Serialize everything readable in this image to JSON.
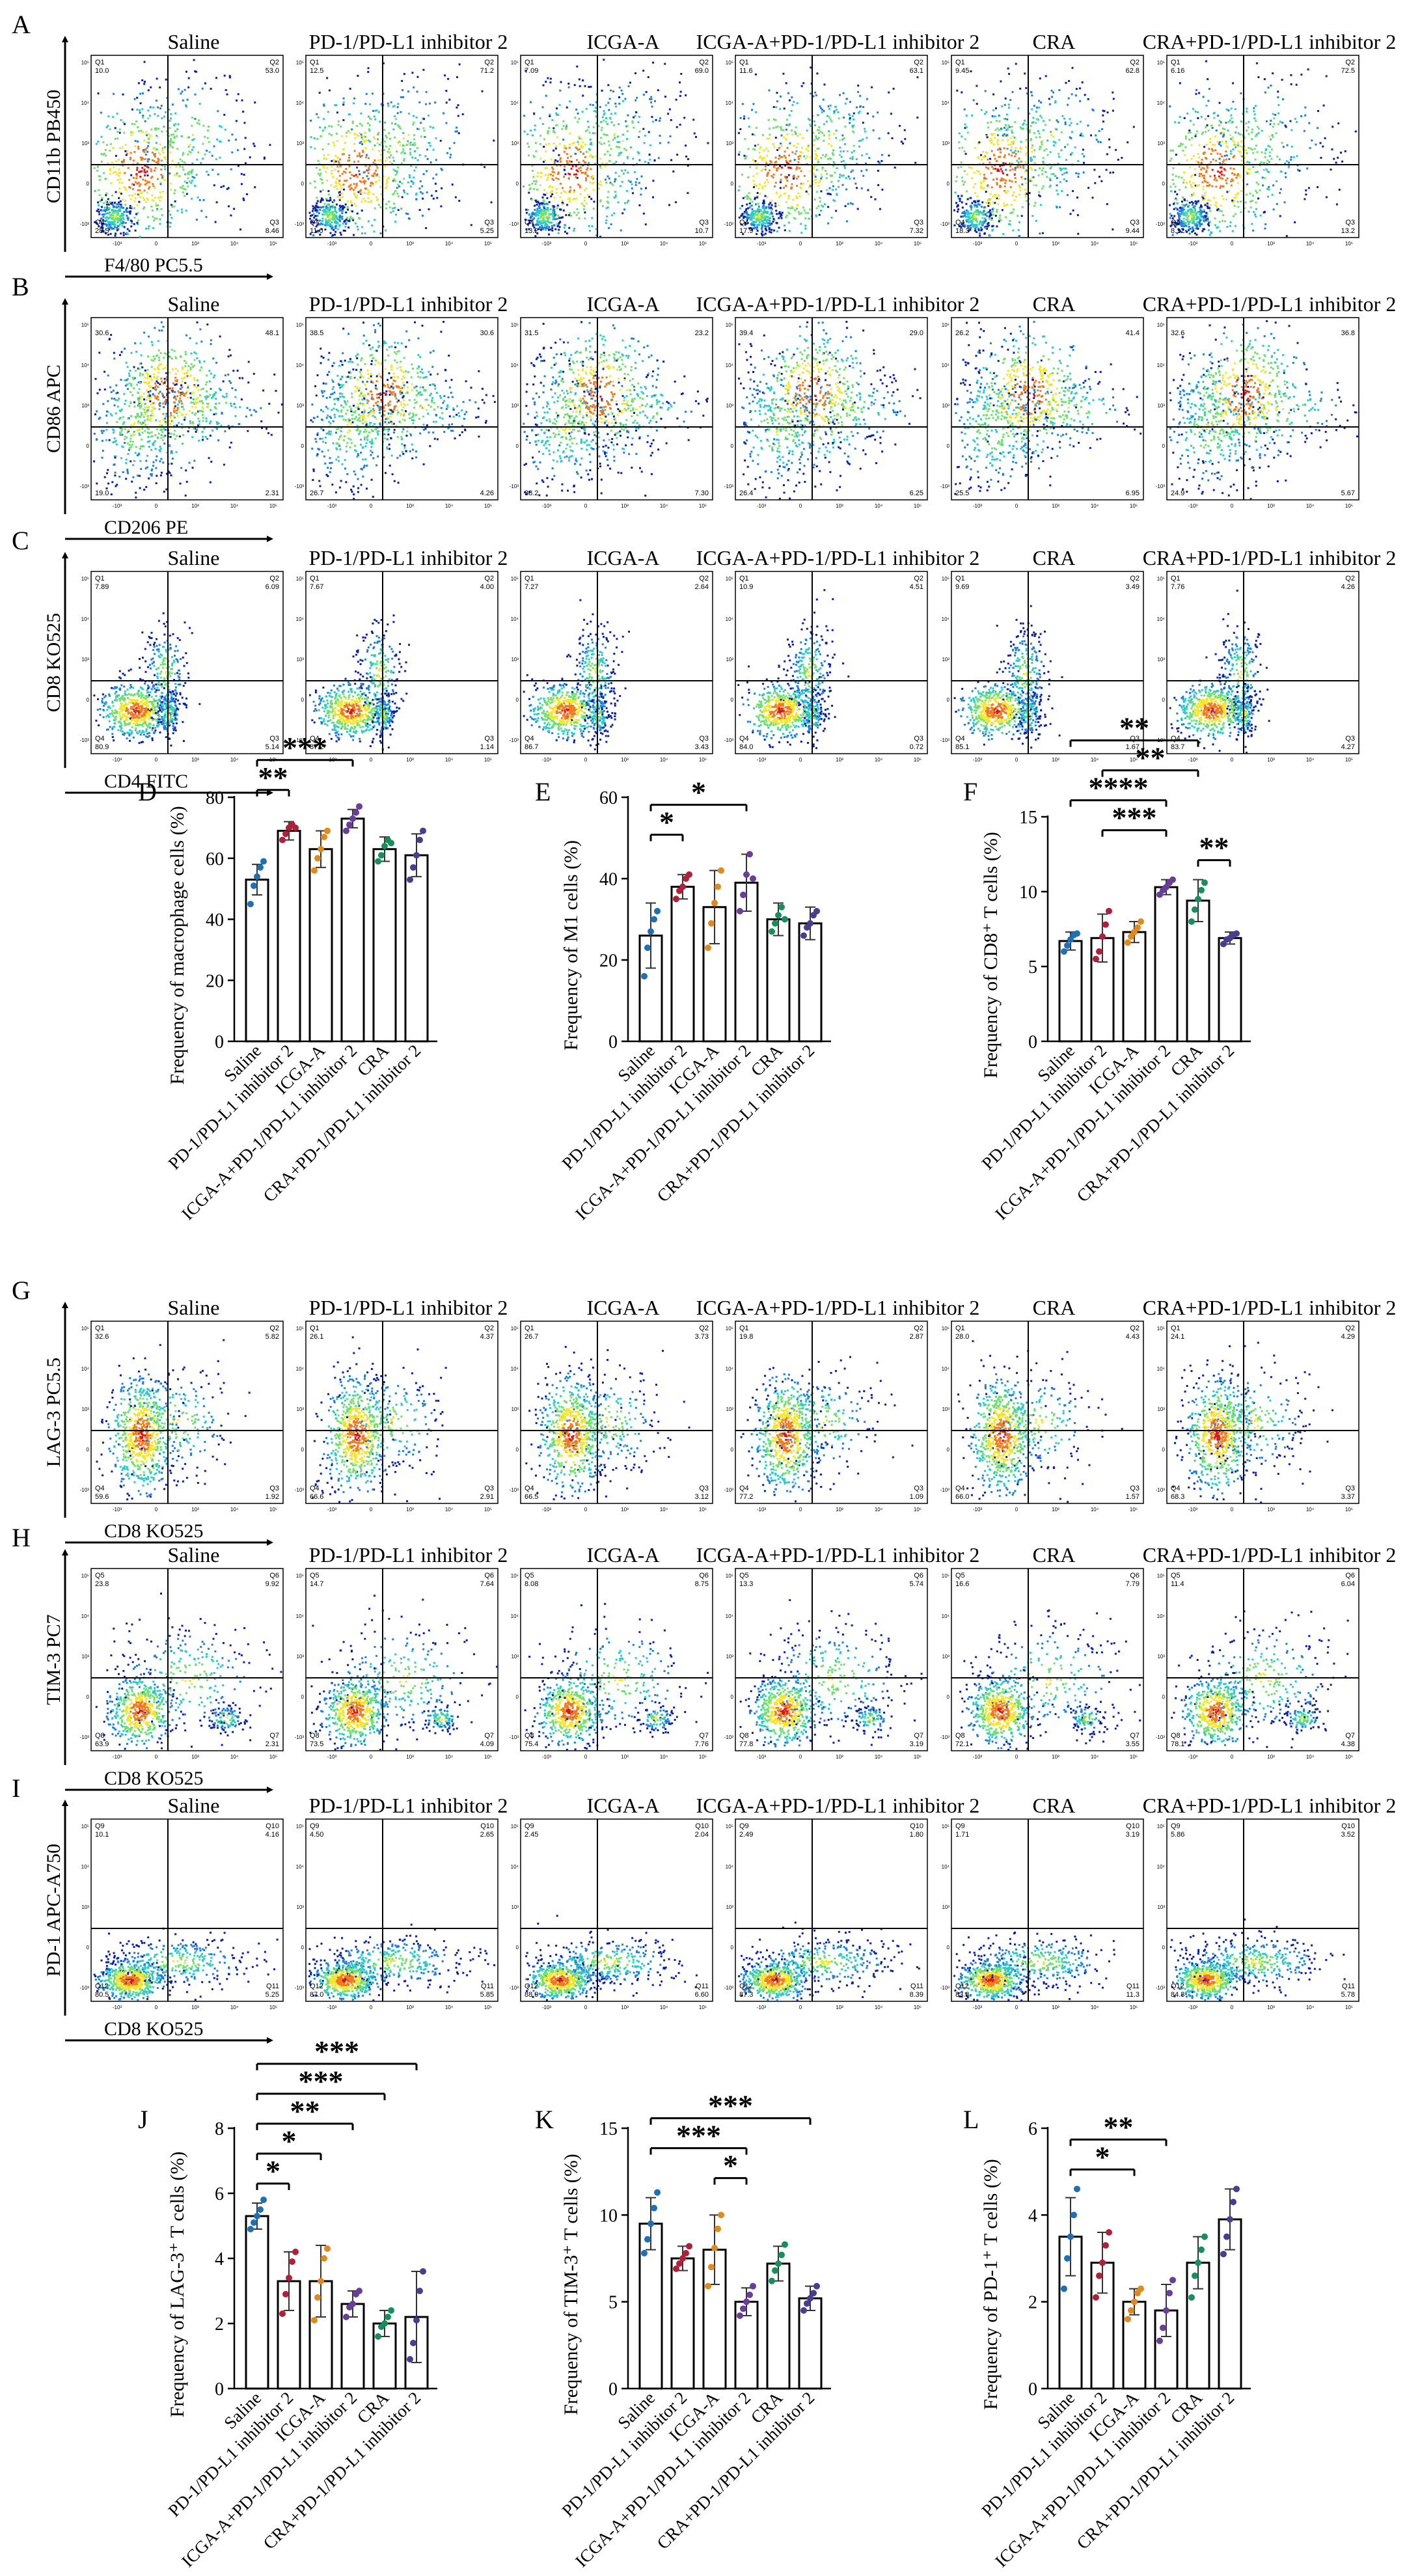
{
  "flow_rows": [
    {
      "label": "A",
      "y_axis": "CD11b PB450",
      "x_axis": "F4/80 PC5.5",
      "quadrants": [
        "Q1",
        "Q2",
        "Q3",
        "Q4"
      ],
      "panels": [
        {
          "title": "Saline",
          "q": [
            "10.0",
            "53.0",
            "8.46",
            "28.5"
          ]
        },
        {
          "title": "PD-1/PD-L1 inhibitor 2",
          "q": [
            "12.5",
            "71.2",
            "5.25",
            "11.0"
          ]
        },
        {
          "title": "ICGA-A",
          "q": [
            "7.09",
            "69.0",
            "10.7",
            "13.2"
          ]
        },
        {
          "title": "ICGA-A+PD-1/PD-L1 inhibitor 2",
          "q": [
            "11.6",
            "63.1",
            "7.32",
            "17.9"
          ]
        },
        {
          "title": "CRA",
          "q": [
            "9.45",
            "62.8",
            "9.44",
            "18.3"
          ]
        },
        {
          "title": "CRA+PD-1/PD-L1 inhibitor 2",
          "q": [
            "6.16",
            "72.5",
            "13.2",
            "8.12"
          ]
        }
      ]
    },
    {
      "label": "B",
      "y_axis": "CD86 APC",
      "x_axis": "CD206 PE",
      "quadrants": [
        "",
        "",
        "",
        ""
      ],
      "panels": [
        {
          "title": "Saline",
          "q": [
            "30.6",
            "48.1",
            "2.31",
            "19.0"
          ]
        },
        {
          "title": "PD-1/PD-L1 inhibitor 2",
          "q": [
            "38.5",
            "30.6",
            "4.26",
            "26.7"
          ]
        },
        {
          "title": "ICGA-A",
          "q": [
            "31.5",
            "23.2",
            "7.30",
            "38.2"
          ]
        },
        {
          "title": "ICGA-A+PD-1/PD-L1 inhibitor 2",
          "q": [
            "39.4",
            "29.0",
            "6.25",
            "26.4"
          ]
        },
        {
          "title": "CRA",
          "q": [
            "26.2",
            "41.4",
            "6.95",
            "25.5"
          ]
        },
        {
          "title": "CRA+PD-1/PD-L1 inhibitor 2",
          "q": [
            "32.6",
            "36.8",
            "5.67",
            "24.9"
          ]
        }
      ]
    },
    {
      "label": "C",
      "y_axis": "CD8 KO525",
      "x_axis": "CD4 FITC",
      "quadrants": [
        "Q1",
        "Q2",
        "Q3",
        "Q4"
      ],
      "panels": [
        {
          "title": "Saline",
          "q": [
            "7.89",
            "6.09",
            "5.14",
            "80.9"
          ]
        },
        {
          "title": "PD-1/PD-L1 inhibitor 2",
          "q": [
            "7.67",
            "4.00",
            "1.14",
            "87.2"
          ]
        },
        {
          "title": "ICGA-A",
          "q": [
            "7.27",
            "2.64",
            "3.43",
            "86.7"
          ]
        },
        {
          "title": "ICGA-A+PD-1/PD-L1 inhibitor 2",
          "q": [
            "10.9",
            "4.51",
            "0.72",
            "84.0"
          ]
        },
        {
          "title": "CRA",
          "q": [
            "9.69",
            "3.49",
            "1.67",
            "85.1"
          ]
        },
        {
          "title": "CRA+PD-1/PD-L1 inhibitor 2",
          "q": [
            "7.76",
            "4.26",
            "4.27",
            "83.7"
          ]
        }
      ]
    },
    {
      "label": "G",
      "y_axis": "LAG-3 PC5.5",
      "x_axis": "CD8 KO525",
      "quadrants": [
        "Q1",
        "Q2",
        "Q3",
        "Q4"
      ],
      "panels": [
        {
          "title": "Saline",
          "q": [
            "32.6",
            "5.82",
            "1.92",
            "59.6"
          ]
        },
        {
          "title": "PD-1/PD-L1 inhibitor 2",
          "q": [
            "26.1",
            "4.37",
            "2.91",
            "66.6"
          ]
        },
        {
          "title": "ICGA-A",
          "q": [
            "26.7",
            "3.73",
            "3.12",
            "66.5"
          ]
        },
        {
          "title": "ICGA-A+PD-1/PD-L1 inhibitor 2",
          "q": [
            "19.8",
            "2.87",
            "1.09",
            "77.2"
          ]
        },
        {
          "title": "CRA",
          "q": [
            "28.0",
            "4.43",
            "1.57",
            "66.0"
          ]
        },
        {
          "title": "CRA+PD-1/PD-L1 inhibitor 2",
          "q": [
            "24.1",
            "4.29",
            "3.37",
            "68.3"
          ]
        }
      ]
    },
    {
      "label": "H",
      "y_axis": "TIM-3 PC7",
      "x_axis": "CD8 KO525",
      "quadrants": [
        "Q5",
        "Q6",
        "Q7",
        "Q8"
      ],
      "panels": [
        {
          "title": "Saline",
          "q": [
            "23.8",
            "9.92",
            "2.31",
            "63.9"
          ]
        },
        {
          "title": "PD-1/PD-L1 inhibitor 2",
          "q": [
            "14.7",
            "7.64",
            "4.09",
            "73.5"
          ]
        },
        {
          "title": "ICGA-A",
          "q": [
            "8.08",
            "8.75",
            "7.76",
            "75.4"
          ]
        },
        {
          "title": "ICGA-A+PD-1/PD-L1 inhibitor 2",
          "q": [
            "13.3",
            "5.74",
            "3.19",
            "77.8"
          ]
        },
        {
          "title": "CRA",
          "q": [
            "16.6",
            "7.79",
            "3.55",
            "72.1"
          ]
        },
        {
          "title": "CRA+PD-1/PD-L1 inhibitor 2",
          "q": [
            "11.4",
            "6.04",
            "4.38",
            "78.1"
          ]
        }
      ]
    },
    {
      "label": "I",
      "y_axis": "PD-1 APC-A750",
      "x_axis": "CD8 KO525",
      "quadrants": [
        "Q9",
        "Q10",
        "Q11",
        "Q12"
      ],
      "panels": [
        {
          "title": "Saline",
          "q": [
            "10.1",
            "4.16",
            "5.25",
            "80.5"
          ]
        },
        {
          "title": "PD-1/PD-L1 inhibitor 2",
          "q": [
            "4.50",
            "2.65",
            "5.85",
            "87.0"
          ]
        },
        {
          "title": "ICGA-A",
          "q": [
            "2.45",
            "2.04",
            "6.60",
            "88.9"
          ]
        },
        {
          "title": "ICGA-A+PD-1/PD-L1 inhibitor 2",
          "q": [
            "2.49",
            "1.80",
            "8.39",
            "87.3"
          ]
        },
        {
          "title": "CRA",
          "q": [
            "1.71",
            "3.19",
            "11.3",
            "83.8"
          ]
        },
        {
          "title": "CRA+PD-1/PD-L1 inhibitor 2",
          "q": [
            "5.86",
            "3.52",
            "5.78",
            "84.8"
          ]
        }
      ]
    }
  ],
  "flow_ticks": {
    "x": [
      "-10³",
      "0",
      "10³",
      "10⁴",
      "10⁵"
    ],
    "y": [
      "10⁵",
      "10⁴",
      "10³",
      "0",
      "-10³"
    ]
  },
  "chart_data": [
    {
      "label": "D",
      "type": "bar",
      "ylabel": "Frequency of macrophage cells (%)",
      "ylim": [
        0,
        80
      ],
      "yticks": [
        "0",
        "20",
        "40",
        "60",
        "80"
      ],
      "categories": [
        "Saline",
        "PD-1/PD-L1 inhibitor 2",
        "ICGA-A",
        "ICGA-A+PD-1/PD-L1 inhibitor 2",
        "CRA",
        "CRA+PD-1/PD-L1 inhibitor 2"
      ],
      "values": [
        53,
        69,
        63,
        73,
        63,
        61
      ],
      "errors": [
        5,
        3,
        6,
        3,
        4,
        7
      ],
      "points": [
        [
          45,
          51,
          54,
          57,
          59
        ],
        [
          66,
          68,
          70,
          71,
          70
        ],
        [
          56,
          60,
          63,
          67,
          69
        ],
        [
          69,
          71,
          73,
          75,
          77
        ],
        [
          59,
          61,
          64,
          66,
          65
        ],
        [
          53,
          57,
          61,
          66,
          69
        ]
      ],
      "significance": [
        {
          "from": 0,
          "to": 1,
          "label": "**"
        },
        {
          "from": 0,
          "to": 3,
          "label": "***"
        }
      ]
    },
    {
      "label": "E",
      "type": "bar",
      "ylabel": "Frequency of M1 cells (%)",
      "ylim": [
        0,
        60
      ],
      "yticks": [
        "0",
        "20",
        "40",
        "60"
      ],
      "categories": [
        "Saline",
        "PD-1/PD-L1 inhibitor 2",
        "ICGA-A",
        "ICGA-A+PD-1/PD-L1 inhibitor 2",
        "CRA",
        "CRA+PD-1/PD-L1 inhibitor 2"
      ],
      "values": [
        26,
        38,
        33,
        39,
        30,
        29
      ],
      "errors": [
        8,
        3,
        9,
        7,
        4,
        4
      ],
      "points": [
        [
          16,
          23,
          27,
          30,
          32
        ],
        [
          35,
          37,
          38,
          40,
          41
        ],
        [
          23,
          29,
          34,
          38,
          42
        ],
        [
          32,
          36,
          41,
          46,
          40
        ],
        [
          27,
          29,
          31,
          33,
          30
        ],
        [
          26,
          28,
          29,
          31,
          32
        ]
      ],
      "significance": [
        {
          "from": 0,
          "to": 1,
          "label": "*"
        },
        {
          "from": 0,
          "to": 3,
          "label": "*"
        }
      ]
    },
    {
      "label": "F",
      "type": "bar",
      "ylabel": "Frequency of CD8⁺ T cells (%)",
      "ylim": [
        0,
        15
      ],
      "yticks": [
        "0",
        "5",
        "10",
        "15"
      ],
      "categories": [
        "Saline",
        "PD-1/PD-L1 inhibitor 2",
        "ICGA-A",
        "ICGA-A+PD-1/PD-L1 inhibitor 2",
        "CRA",
        "CRA+PD-1/PD-L1 inhibitor 2"
      ],
      "values": [
        6.7,
        6.9,
        7.3,
        10.3,
        9.4,
        6.9
      ],
      "errors": [
        0.6,
        1.6,
        0.7,
        0.5,
        1.4,
        0.4
      ],
      "points": [
        [
          6.0,
          6.4,
          6.8,
          7.1,
          7.2
        ],
        [
          5.5,
          6.0,
          7.0,
          7.8,
          8.7
        ],
        [
          6.6,
          7.0,
          7.3,
          7.6,
          8.0
        ],
        [
          9.8,
          10.1,
          10.3,
          10.6,
          10.8
        ],
        [
          8.0,
          8.8,
          9.5,
          10.1,
          10.6
        ],
        [
          6.5,
          6.8,
          6.9,
          7.1,
          7.2
        ]
      ],
      "significance": [
        {
          "from": 4,
          "to": 5,
          "label": "**"
        },
        {
          "from": 1,
          "to": 3,
          "label": "***"
        },
        {
          "from": 0,
          "to": 3,
          "label": "****"
        },
        {
          "from": 1,
          "to": 4,
          "label": "**"
        },
        {
          "from": 0,
          "to": 4,
          "label": "**"
        }
      ]
    },
    {
      "label": "J",
      "type": "bar",
      "ylabel": "Frequency of LAG-3⁺ T cells (%)",
      "ylim": [
        0,
        8
      ],
      "yticks": [
        "0",
        "2",
        "4",
        "6",
        "8"
      ],
      "categories": [
        "Saline",
        "PD-1/PD-L1 inhibitor 2",
        "ICGA-A",
        "ICGA-A+PD-1/PD-L1 inhibitor 2",
        "CRA",
        "CRA+PD-1/PD-L1 inhibitor 2"
      ],
      "values": [
        5.3,
        3.3,
        3.3,
        2.6,
        2.0,
        2.2
      ],
      "errors": [
        0.4,
        0.9,
        1.1,
        0.4,
        0.4,
        1.4
      ],
      "points": [
        [
          4.9,
          5.1,
          5.3,
          5.5,
          5.8
        ],
        [
          2.3,
          2.9,
          3.4,
          3.9,
          4.2
        ],
        [
          2.1,
          2.8,
          3.3,
          4.0,
          4.3
        ],
        [
          2.2,
          2.5,
          2.6,
          2.9,
          3.0
        ],
        [
          1.6,
          1.9,
          2.0,
          2.2,
          2.4
        ],
        [
          0.9,
          1.4,
          2.1,
          3.0,
          3.6
        ]
      ],
      "significance": [
        {
          "from": 0,
          "to": 1,
          "label": "*"
        },
        {
          "from": 0,
          "to": 2,
          "label": "*"
        },
        {
          "from": 0,
          "to": 3,
          "label": "**"
        },
        {
          "from": 0,
          "to": 4,
          "label": "***"
        },
        {
          "from": 0,
          "to": 5,
          "label": "***"
        }
      ]
    },
    {
      "label": "K",
      "type": "bar",
      "ylabel": "Frequency of TIM-3⁺ T cells (%)",
      "ylim": [
        0,
        15
      ],
      "yticks": [
        "0",
        "5",
        "10",
        "15"
      ],
      "categories": [
        "Saline",
        "PD-1/PD-L1 inhibitor 2",
        "ICGA-A",
        "ICGA-A+PD-1/PD-L1 inhibitor 2",
        "CRA",
        "CRA+PD-1/PD-L1 inhibitor 2"
      ],
      "values": [
        9.5,
        7.5,
        8.0,
        5.0,
        7.2,
        5.2
      ],
      "errors": [
        1.5,
        0.7,
        2.0,
        0.8,
        1.0,
        0.7
      ],
      "points": [
        [
          7.8,
          8.6,
          9.5,
          10.4,
          11.3
        ],
        [
          6.9,
          7.2,
          7.5,
          7.8,
          8.2
        ],
        [
          5.9,
          7.0,
          8.1,
          9.2,
          10.0
        ],
        [
          4.2,
          4.6,
          5.0,
          5.4,
          5.9
        ],
        [
          6.2,
          6.8,
          7.2,
          7.7,
          8.3
        ],
        [
          4.5,
          4.9,
          5.2,
          5.5,
          5.9
        ]
      ],
      "significance": [
        {
          "from": 2,
          "to": 3,
          "label": "*"
        },
        {
          "from": 0,
          "to": 3,
          "label": "***"
        },
        {
          "from": 0,
          "to": 5,
          "label": "***"
        }
      ]
    },
    {
      "label": "L",
      "type": "bar",
      "ylabel": "Frequency of PD-1⁺ T cells (%)",
      "ylim": [
        0,
        6
      ],
      "yticks": [
        "0",
        "2",
        "4",
        "6"
      ],
      "categories": [
        "Saline",
        "PD-1/PD-L1 inhibitor 2",
        "ICGA-A",
        "ICGA-A+PD-1/PD-L1 inhibitor 2",
        "CRA",
        "CRA+PD-1/PD-L1 inhibitor 2"
      ],
      "values": [
        3.5,
        2.9,
        2.0,
        1.8,
        2.9,
        3.9
      ],
      "errors": [
        0.9,
        0.7,
        0.3,
        0.6,
        0.6,
        0.7
      ],
      "points": [
        [
          2.3,
          3.0,
          3.5,
          4.0,
          4.6
        ],
        [
          2.1,
          2.6,
          2.9,
          3.3,
          3.6
        ],
        [
          1.6,
          1.8,
          2.0,
          2.2,
          2.3
        ],
        [
          1.1,
          1.4,
          1.8,
          2.2,
          2.5
        ],
        [
          2.1,
          2.6,
          2.9,
          3.2,
          3.5
        ],
        [
          3.1,
          3.5,
          3.9,
          4.3,
          4.6
        ]
      ],
      "significance": [
        {
          "from": 0,
          "to": 2,
          "label": "*"
        },
        {
          "from": 0,
          "to": 3,
          "label": "**"
        }
      ]
    }
  ],
  "colors": {
    "dots": [
      "#1f6fb4",
      "#b0203a",
      "#e08a1e",
      "#6a3d9a",
      "#178f5a",
      "#4a3d8f"
    ],
    "density": [
      "#0a1fa8",
      "#1e7fd8",
      "#2cc9c9",
      "#6fe070",
      "#f2e52c",
      "#f07b1e",
      "#d81818"
    ]
  }
}
